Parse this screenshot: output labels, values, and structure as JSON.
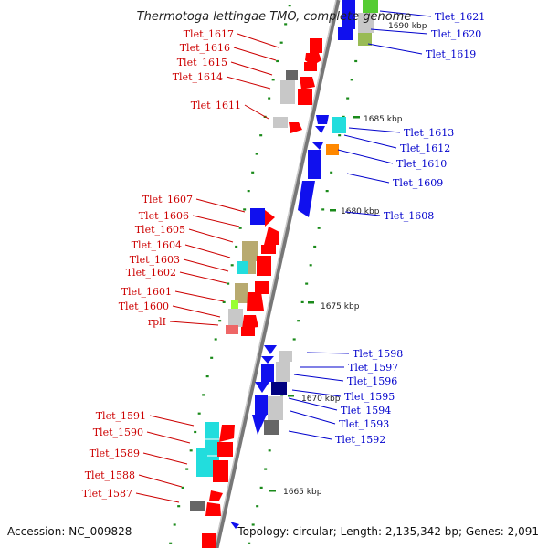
{
  "title": "Thermotoga lettingae TMO, complete genome",
  "footer": {
    "accession": "Accession: NC_009828",
    "summary": "Topology: circular; Length: 2,135,342 bp; Genes: 2,091"
  },
  "colors": {
    "left_label": "#cc0000",
    "right_label": "#0000cc",
    "backbone": "#888888",
    "tick": "#1a8a1a",
    "red_gene": "#ff0000",
    "blue_gene": "#1010ee",
    "cyan_gene": "#22dddd",
    "orange_gene": "#ff8800",
    "khaki_gene": "#b8aa70",
    "gray_gene": "#bdbdbd",
    "dark_gene": "#555555"
  },
  "scale_labels": [
    "1690 kbp",
    "1685 kbp",
    "1680 kbp",
    "1675 kbp",
    "1670 kbp",
    "1665 kbp"
  ],
  "left_genes": [
    "Tlet_1617",
    "Tlet_1616",
    "Tlet_1615",
    "Tlet_1614",
    "Tlet_1611",
    "Tlet_1607",
    "Tlet_1606",
    "Tlet_1605",
    "Tlet_1604",
    "Tlet_1603",
    "Tlet_1602",
    "Tlet_1601",
    "Tlet_1600",
    "rplI",
    "Tlet_1591",
    "Tlet_1590",
    "Tlet_1589",
    "Tlet_1588",
    "Tlet_1587"
  ],
  "right_genes": [
    "Tlet_1621",
    "Tlet_1620",
    "Tlet_1619",
    "Tlet_1613",
    "Tlet_1612",
    "Tlet_1610",
    "Tlet_1609",
    "Tlet_1608",
    "Tlet_1598",
    "Tlet_1597",
    "Tlet_1596",
    "Tlet_1595",
    "Tlet_1594",
    "Tlet_1593",
    "Tlet_1592"
  ]
}
